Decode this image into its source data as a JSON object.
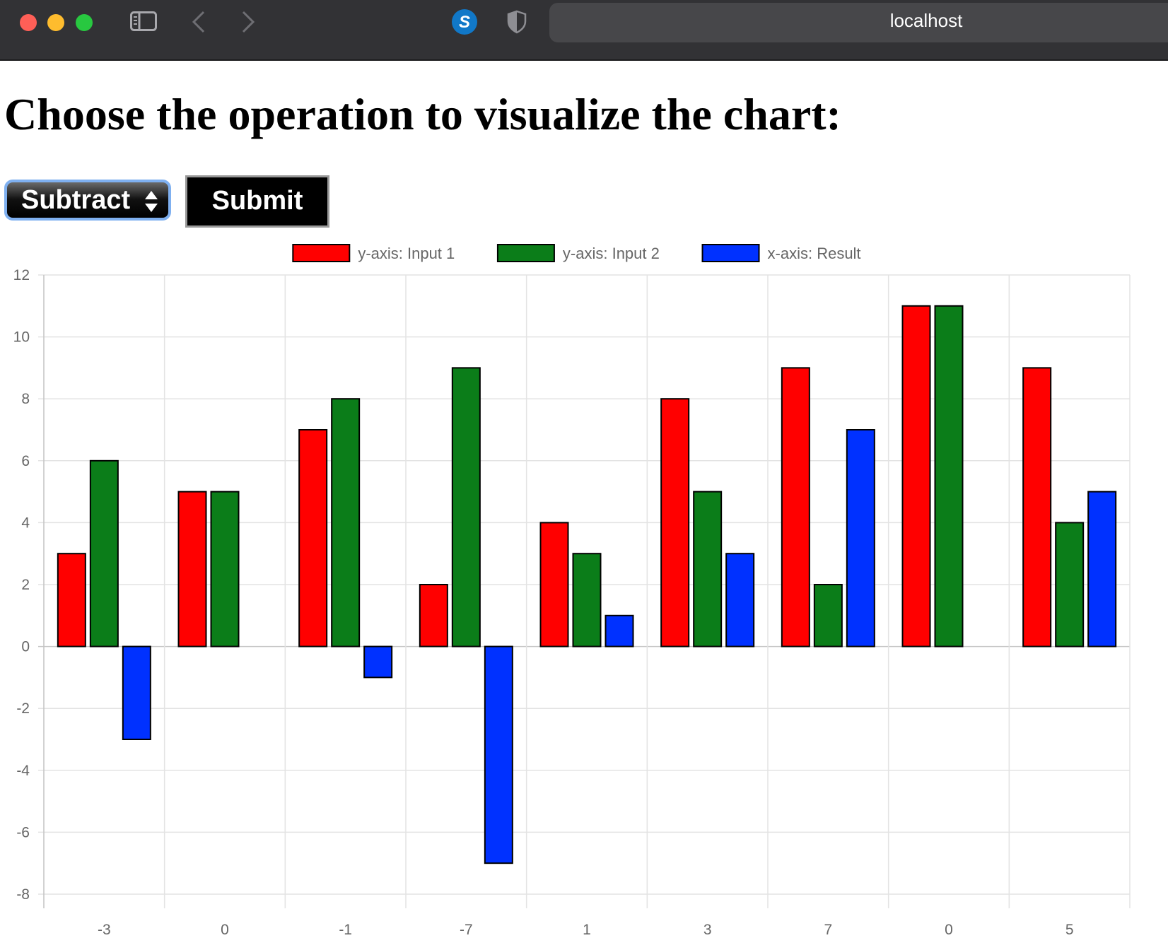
{
  "browser": {
    "url": "localhost",
    "icons": [
      "close-window-icon",
      "minimize-window-icon",
      "zoom-window-icon",
      "sidebar-toggle-icon",
      "back-arrow-icon",
      "forward-arrow-icon",
      "extension-s-icon",
      "shield-icon"
    ]
  },
  "page": {
    "heading": "Choose the operation to visualize the chart:",
    "operation_select": {
      "selected": "Subtract"
    },
    "submit_label": "Submit"
  },
  "chart_data": {
    "type": "bar",
    "title": "",
    "xlabel": "",
    "ylabel": "",
    "categories": [
      "-3",
      "0",
      "-1",
      "-7",
      "1",
      "3",
      "7",
      "0",
      "5"
    ],
    "series": [
      {
        "name": "y-axis: Input 1",
        "color": "#ff0000",
        "values": [
          3,
          5,
          7,
          2,
          4,
          8,
          9,
          11,
          9
        ]
      },
      {
        "name": "y-axis: Input 2",
        "color": "#0b7d19",
        "values": [
          6,
          5,
          8,
          9,
          3,
          5,
          2,
          11,
          4
        ]
      },
      {
        "name": "x-axis: Result",
        "color": "#0031ff",
        "values": [
          -3,
          0,
          -1,
          -7,
          1,
          3,
          7,
          0,
          5
        ]
      }
    ],
    "ylim": [
      -8,
      12
    ],
    "yticks": [
      12,
      10,
      8,
      6,
      4,
      2,
      0,
      -2,
      -4,
      -6,
      -8
    ],
    "grid": true,
    "legend": "top-center"
  }
}
